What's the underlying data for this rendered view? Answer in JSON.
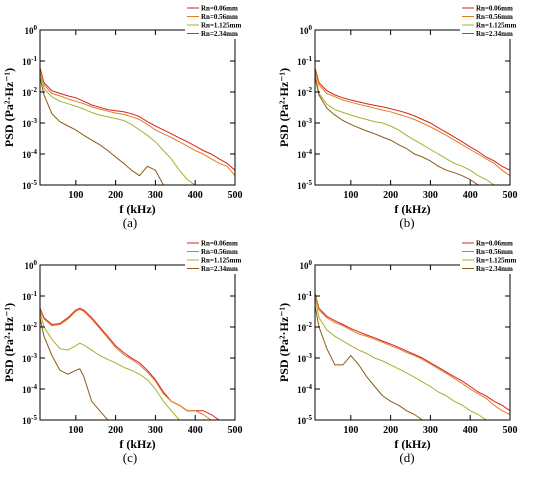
{
  "figure": {
    "background": "#ffffff",
    "axis_color": "#000000"
  },
  "chart_data": [
    {
      "type": "line",
      "panel_label": "(a)",
      "xlabel": "f (kHz)",
      "ylabel": "PSD  (Pa²·Hz⁻¹)",
      "xlim": [
        10,
        500
      ],
      "ylim": [
        1e-05,
        1
      ],
      "yscale": "log",
      "xticks": [
        100,
        200,
        300,
        400,
        500
      ],
      "yticks": [
        1e-05,
        0.0001,
        0.001,
        0.01,
        0.1,
        1
      ],
      "legend_position": "top-right",
      "grid": false,
      "series": [
        {
          "name": "Rn=0.06mm",
          "color": "#d8211f",
          "x": [
            10,
            20,
            40,
            60,
            80,
            100,
            120,
            140,
            160,
            180,
            200,
            220,
            240,
            260,
            280,
            300,
            320,
            340,
            360,
            380,
            400,
            420,
            440,
            460,
            480,
            500
          ],
          "y": [
            0.06,
            0.02,
            0.011,
            0.009,
            0.0075,
            0.0065,
            0.005,
            0.0038,
            0.0032,
            0.0027,
            0.0025,
            0.0023,
            0.002,
            0.0016,
            0.0011,
            0.0008,
            0.0006,
            0.00045,
            0.00033,
            0.00025,
            0.00018,
            0.00013,
            0.0001,
            7e-05,
            5e-05,
            3e-05
          ]
        },
        {
          "name": "Rn=0.56mm",
          "color": "#e07d24",
          "x": [
            10,
            20,
            40,
            60,
            80,
            100,
            120,
            140,
            160,
            180,
            200,
            220,
            240,
            260,
            280,
            300,
            320,
            340,
            360,
            380,
            400,
            420,
            440,
            460,
            480,
            500
          ],
          "y": [
            0.05,
            0.017,
            0.009,
            0.0075,
            0.006,
            0.005,
            0.0042,
            0.0033,
            0.0028,
            0.0024,
            0.0021,
            0.0019,
            0.0016,
            0.0013,
            0.0009,
            0.0006,
            0.00045,
            0.00034,
            0.00025,
            0.00018,
            0.00013,
            0.0001,
            7e-05,
            5e-05,
            4e-05,
            2e-05
          ]
        },
        {
          "name": "Rn=1.125mm",
          "color": "#a8b02b",
          "x": [
            10,
            20,
            40,
            60,
            80,
            100,
            120,
            140,
            160,
            180,
            200,
            220,
            240,
            260,
            280,
            300,
            320,
            340,
            360,
            380,
            400
          ],
          "y": [
            0.045,
            0.013,
            0.007,
            0.005,
            0.0042,
            0.0035,
            0.0028,
            0.0022,
            0.0018,
            0.0016,
            0.0014,
            0.0012,
            0.0009,
            0.0006,
            0.0004,
            0.00025,
            0.00013,
            7e-05,
            3e-05,
            1.5e-05,
            1e-05
          ]
        },
        {
          "name": "Rn=2.34mm",
          "color": "#8c5a18",
          "x": [
            10,
            20,
            40,
            60,
            80,
            100,
            120,
            140,
            160,
            180,
            200,
            220,
            240,
            260,
            280,
            300,
            320
          ],
          "y": [
            0.03,
            0.008,
            0.002,
            0.0011,
            0.0008,
            0.0006,
            0.0004,
            0.00028,
            0.0002,
            0.00013,
            8e-05,
            5e-05,
            3e-05,
            2e-05,
            4e-05,
            3e-05,
            1e-05
          ]
        }
      ]
    },
    {
      "type": "line",
      "panel_label": "(b)",
      "xlabel": "f (kHz)",
      "ylabel": "PSD  (Pa²·Hz⁻¹)",
      "xlim": [
        10,
        500
      ],
      "ylim": [
        1e-05,
        1
      ],
      "yscale": "log",
      "xticks": [
        100,
        200,
        300,
        400,
        500
      ],
      "yticks": [
        1e-05,
        0.0001,
        0.001,
        0.01,
        0.1,
        1
      ],
      "legend_position": "top-right",
      "grid": false,
      "series": [
        {
          "name": "Rn=0.06mm",
          "color": "#d8211f",
          "x": [
            10,
            20,
            40,
            60,
            80,
            100,
            120,
            140,
            160,
            180,
            200,
            220,
            240,
            260,
            280,
            300,
            320,
            340,
            360,
            380,
            400,
            420,
            440,
            460,
            480,
            500
          ],
          "y": [
            0.06,
            0.02,
            0.011,
            0.008,
            0.0065,
            0.0055,
            0.0048,
            0.0042,
            0.0037,
            0.0033,
            0.0029,
            0.0025,
            0.0021,
            0.0017,
            0.0013,
            0.001,
            0.0007,
            0.0005,
            0.00035,
            0.00025,
            0.00017,
            0.00012,
            8e-05,
            6e-05,
            4e-05,
            3e-05
          ]
        },
        {
          "name": "Rn=0.56mm",
          "color": "#e07d24",
          "x": [
            10,
            20,
            40,
            60,
            80,
            100,
            120,
            140,
            160,
            180,
            200,
            220,
            240,
            260,
            280,
            300,
            320,
            340,
            360,
            380,
            400,
            420,
            440,
            460,
            480,
            500
          ],
          "y": [
            0.05,
            0.017,
            0.009,
            0.007,
            0.0055,
            0.0047,
            0.004,
            0.0035,
            0.003,
            0.0026,
            0.0023,
            0.0019,
            0.0016,
            0.0013,
            0.001,
            0.00075,
            0.00055,
            0.0004,
            0.00028,
            0.0002,
            0.00014,
            0.0001,
            7e-05,
            5e-05,
            3e-05,
            2e-05
          ]
        },
        {
          "name": "Rn=1.125mm",
          "color": "#a8b02b",
          "x": [
            10,
            20,
            40,
            60,
            80,
            100,
            120,
            140,
            160,
            180,
            200,
            220,
            240,
            260,
            280,
            300,
            320,
            340,
            360,
            380,
            400,
            420,
            440,
            460,
            480,
            500
          ],
          "y": [
            0.04,
            0.009,
            0.004,
            0.0027,
            0.0022,
            0.0018,
            0.0015,
            0.0013,
            0.0011,
            0.001,
            0.0008,
            0.0006,
            0.0004,
            0.00028,
            0.0002,
            0.00014,
            0.0001,
            7e-05,
            5e-05,
            4e-05,
            3e-05,
            2e-05,
            1.5e-05,
            1e-05,
            1e-05,
            1e-05
          ]
        },
        {
          "name": "Rn=2.34mm",
          "color": "#8c5a18",
          "x": [
            10,
            20,
            40,
            60,
            80,
            100,
            120,
            140,
            160,
            180,
            200,
            220,
            240,
            260,
            280,
            300,
            320,
            340,
            360,
            380,
            400,
            420,
            440,
            460,
            480
          ],
          "y": [
            0.03,
            0.008,
            0.003,
            0.0018,
            0.0012,
            0.0009,
            0.0007,
            0.00055,
            0.00045,
            0.00035,
            0.00028,
            0.0002,
            0.00015,
            0.0001,
            8e-05,
            6e-05,
            4e-05,
            3e-05,
            2.5e-05,
            2e-05,
            1.5e-05,
            1e-05,
            1e-05,
            1e-05,
            1e-05
          ]
        }
      ]
    },
    {
      "type": "line",
      "panel_label": "(c)",
      "xlabel": "f (kHz)",
      "ylabel": "PSD  (Pa²·Hz⁻¹)",
      "xlim": [
        10,
        500
      ],
      "ylim": [
        1e-05,
        1
      ],
      "yscale": "log",
      "xticks": [
        100,
        200,
        300,
        400,
        500
      ],
      "yticks": [
        1e-05,
        0.0001,
        0.001,
        0.01,
        0.1,
        1
      ],
      "legend_position": "top-right",
      "grid": false,
      "series": [
        {
          "name": "Rn=0.06mm",
          "color": "#d8211f",
          "x": [
            10,
            20,
            40,
            60,
            80,
            100,
            110,
            120,
            140,
            160,
            180,
            200,
            220,
            240,
            260,
            280,
            300,
            320,
            340,
            360,
            380,
            400,
            420,
            440,
            460,
            480,
            500
          ],
          "y": [
            0.04,
            0.02,
            0.012,
            0.013,
            0.02,
            0.035,
            0.04,
            0.035,
            0.02,
            0.01,
            0.005,
            0.0025,
            0.0015,
            0.001,
            0.0007,
            0.0004,
            0.0002,
            8e-05,
            4e-05,
            3e-05,
            2e-05,
            2e-05,
            2e-05,
            1.5e-05,
            1e-05,
            1e-05,
            1e-05
          ]
        },
        {
          "name": "Rn=0.56mm",
          "color": "#e07d24",
          "x": [
            10,
            20,
            40,
            60,
            80,
            100,
            110,
            120,
            140,
            160,
            180,
            200,
            220,
            240,
            260,
            280,
            300,
            320,
            340,
            360,
            380,
            400,
            420,
            440,
            460,
            480,
            500
          ],
          "y": [
            0.035,
            0.018,
            0.011,
            0.012,
            0.018,
            0.032,
            0.037,
            0.032,
            0.018,
            0.009,
            0.0045,
            0.0022,
            0.0013,
            0.0009,
            0.0006,
            0.00035,
            0.00018,
            7e-05,
            4e-05,
            3e-05,
            2e-05,
            2e-05,
            1.5e-05,
            1e-05,
            1e-05,
            1e-05,
            1e-05
          ]
        },
        {
          "name": "Rn=1.125mm",
          "color": "#a8b02b",
          "x": [
            10,
            20,
            40,
            60,
            80,
            100,
            110,
            120,
            140,
            160,
            180,
            200,
            220,
            240,
            260,
            280,
            300,
            320,
            340,
            360
          ],
          "y": [
            0.03,
            0.01,
            0.004,
            0.002,
            0.0018,
            0.0025,
            0.003,
            0.0026,
            0.0018,
            0.0012,
            0.0009,
            0.0007,
            0.0005,
            0.0004,
            0.0003,
            0.0002,
            0.0001,
            4e-05,
            2e-05,
            1e-05
          ]
        },
        {
          "name": "Rn=2.34mm",
          "color": "#8c5a18",
          "x": [
            10,
            20,
            40,
            60,
            80,
            100,
            110,
            120,
            140,
            160,
            180,
            200,
            220,
            240
          ],
          "y": [
            0.02,
            0.005,
            0.0012,
            0.0004,
            0.0003,
            0.0004,
            0.00045,
            0.00025,
            4e-05,
            2e-05,
            1e-05,
            1e-05,
            1e-05,
            1e-05
          ]
        }
      ]
    },
    {
      "type": "line",
      "panel_label": "(d)",
      "xlabel": "f (kHz)",
      "ylabel": "PSD  (Pa²·Hz⁻¹)",
      "xlim": [
        10,
        500
      ],
      "ylim": [
        1e-05,
        1
      ],
      "yscale": "log",
      "xticks": [
        100,
        200,
        300,
        400,
        500
      ],
      "yticks": [
        1e-05,
        0.0001,
        0.001,
        0.01,
        0.1,
        1
      ],
      "legend_position": "top-right",
      "grid": false,
      "series": [
        {
          "name": "Rn=0.06mm",
          "color": "#d8211f",
          "x": [
            10,
            20,
            40,
            60,
            80,
            100,
            120,
            140,
            160,
            180,
            200,
            220,
            240,
            260,
            280,
            300,
            320,
            340,
            360,
            380,
            400,
            420,
            440,
            460,
            480,
            500
          ],
          "y": [
            0.12,
            0.04,
            0.022,
            0.016,
            0.012,
            0.009,
            0.007,
            0.0055,
            0.0045,
            0.0035,
            0.0028,
            0.0022,
            0.0017,
            0.0013,
            0.001,
            0.0007,
            0.0005,
            0.00035,
            0.00025,
            0.00018,
            0.00012,
            8e-05,
            6e-05,
            4e-05,
            3e-05,
            2e-05
          ]
        },
        {
          "name": "Rn=0.56mm",
          "color": "#e07d24",
          "x": [
            10,
            20,
            40,
            60,
            80,
            100,
            120,
            140,
            160,
            180,
            200,
            220,
            240,
            260,
            280,
            300,
            320,
            340,
            360,
            380,
            400,
            420,
            440,
            460,
            480,
            500
          ],
          "y": [
            0.11,
            0.035,
            0.02,
            0.014,
            0.011,
            0.008,
            0.006,
            0.005,
            0.004,
            0.0032,
            0.0025,
            0.002,
            0.0015,
            0.0012,
            0.0009,
            0.00065,
            0.00045,
            0.00032,
            0.00022,
            0.00015,
            0.0001,
            7e-05,
            5e-05,
            3e-05,
            2e-05,
            1.5e-05
          ]
        },
        {
          "name": "Rn=1.125mm",
          "color": "#a8b02b",
          "x": [
            10,
            20,
            40,
            60,
            80,
            100,
            120,
            140,
            160,
            180,
            200,
            220,
            240,
            260,
            280,
            300,
            320,
            340,
            360,
            380,
            400,
            420,
            440,
            460,
            480,
            500
          ],
          "y": [
            0.09,
            0.02,
            0.008,
            0.005,
            0.0035,
            0.0025,
            0.0018,
            0.0014,
            0.001,
            0.0008,
            0.0006,
            0.00045,
            0.00033,
            0.00024,
            0.00017,
            0.00012,
            8e-05,
            6e-05,
            4e-05,
            3e-05,
            2e-05,
            1.5e-05,
            1e-05,
            1e-05,
            1e-05,
            1e-05
          ]
        },
        {
          "name": "Rn=2.34mm",
          "color": "#8c5a18",
          "x": [
            10,
            20,
            40,
            60,
            80,
            100,
            120,
            140,
            160,
            180,
            200,
            220,
            240,
            260,
            280,
            300,
            320
          ],
          "y": [
            0.05,
            0.01,
            0.002,
            0.0006,
            0.0006,
            0.0012,
            0.0006,
            0.00025,
            0.00012,
            6e-05,
            4e-05,
            3e-05,
            2e-05,
            1.5e-05,
            1e-05,
            1e-05,
            1e-05
          ]
        }
      ]
    }
  ]
}
